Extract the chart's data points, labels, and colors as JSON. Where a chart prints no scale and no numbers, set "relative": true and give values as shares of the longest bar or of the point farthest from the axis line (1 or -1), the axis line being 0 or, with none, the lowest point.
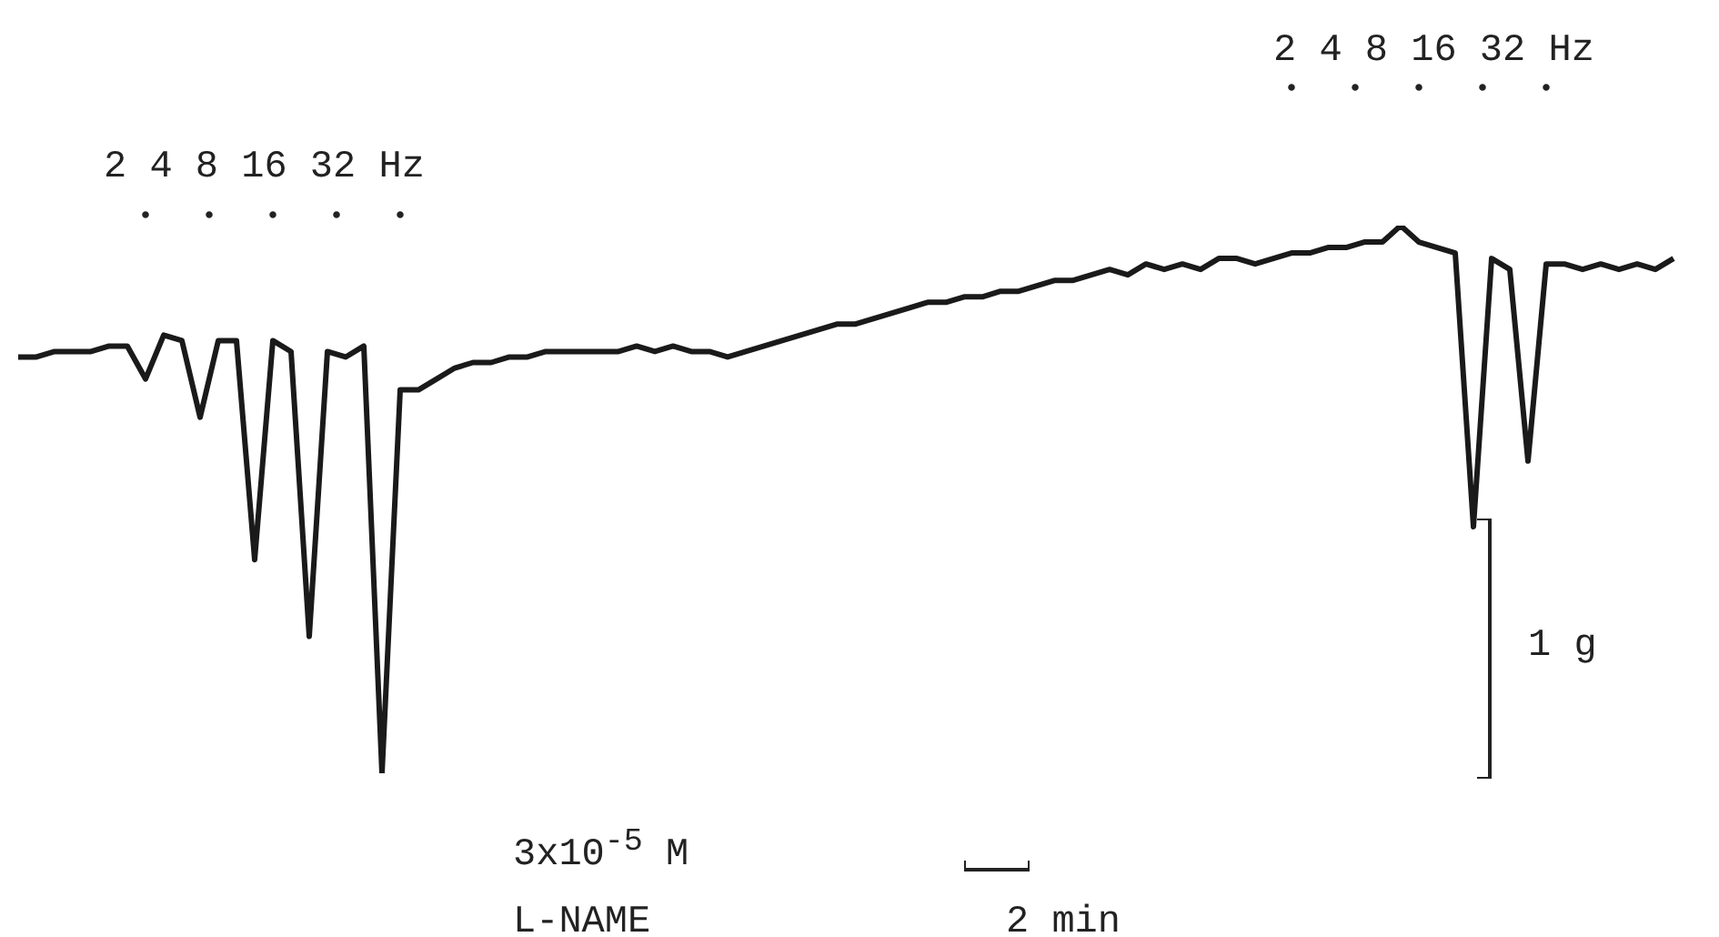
{
  "chart_data": {
    "type": "line",
    "relative": true,
    "tick_labels": false,
    "legend": false,
    "marker": "none",
    "line_style": "solid",
    "categories": [
      null,
      null,
      null,
      null,
      null,
      null,
      null,
      null,
      null,
      null,
      null,
      null,
      null,
      null,
      null,
      null,
      null,
      null,
      null,
      null,
      null,
      null,
      null,
      null,
      null,
      null,
      null,
      null,
      null,
      null,
      null,
      null,
      null,
      null,
      null,
      null,
      null,
      null,
      null,
      null,
      null,
      null,
      null,
      null,
      null,
      null,
      null,
      null,
      null,
      null,
      null,
      null,
      null,
      null,
      null,
      null,
      null,
      null,
      null,
      null,
      null,
      null,
      null,
      null,
      null,
      null,
      null,
      null,
      null,
      null,
      null,
      null,
      null,
      null,
      null,
      null,
      null,
      null,
      null,
      null,
      null,
      null,
      null,
      null,
      null,
      null,
      null,
      null,
      null,
      null,
      null,
      null
    ],
    "series": [
      {
        "color": "#1a1a1a",
        "values": [
          0.76,
          0.76,
          0.77,
          0.77,
          0.77,
          0.78,
          0.78,
          0.72,
          0.8,
          0.79,
          0.65,
          0.79,
          0.79,
          0.39,
          0.79,
          0.77,
          0.25,
          0.77,
          0.76,
          0.78,
          0,
          0.7,
          0.7,
          0.72,
          0.74,
          0.75,
          0.75,
          0.76,
          0.76,
          0.77,
          0.77,
          0.77,
          0.77,
          0.77,
          0.78,
          0.77,
          0.78,
          0.77,
          0.77,
          0.76,
          0.77,
          0.78,
          0.79,
          0.8,
          0.81,
          0.82,
          0.82,
          0.83,
          0.84,
          0.85,
          0.86,
          0.86,
          0.87,
          0.87,
          0.88,
          0.88,
          0.89,
          0.9,
          0.9,
          0.91,
          0.92,
          0.91,
          0.93,
          0.92,
          0.93,
          0.92,
          0.94,
          0.94,
          0.93,
          0.94,
          0.95,
          0.95,
          0.96,
          0.96,
          0.97,
          0.97,
          1,
          0.97,
          0.96,
          0.95,
          0.45,
          0.94,
          0.92,
          0.57,
          0.93,
          0.93,
          0.92,
          0.93,
          0.92,
          0.93,
          0.92,
          0.94
        ]
      }
    ],
    "annotations": [
      "2 4 8 16 32 Hz",
      "2 4 8 16 32 Hz",
      "1 g",
      "2 min",
      "3x10$^{-5}$ M",
      "L-NAME"
    ]
  }
}
